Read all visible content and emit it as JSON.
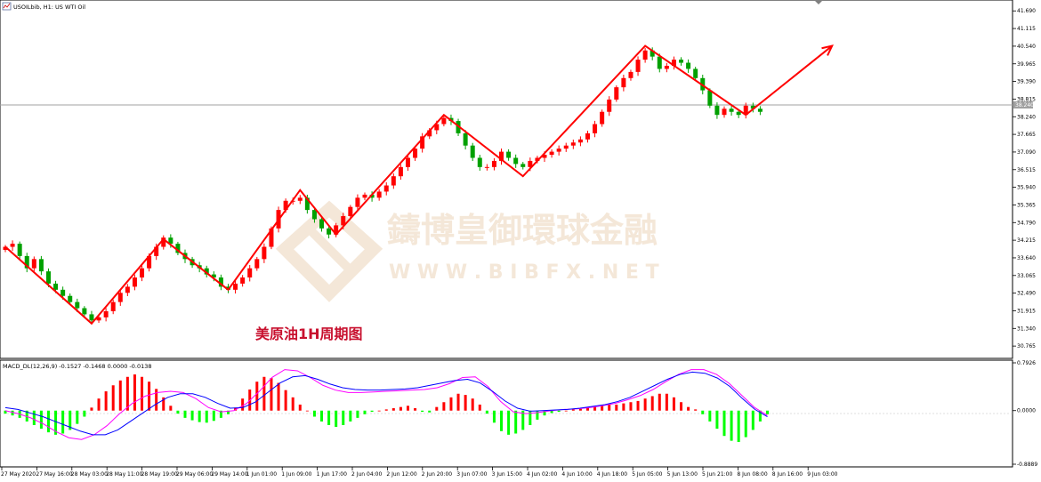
{
  "colors": {
    "bull": "#ff0000",
    "bear": "#00a000",
    "zigzag": "#ff0000",
    "macd_pos": "#ff0000",
    "macd_neg": "#00ff00",
    "macd_line": "#ff00ff",
    "signal_line": "#0000ff",
    "price_box": "#a0a0a0",
    "watermark": "#f4e7d8"
  },
  "header": {
    "icon": "chart-window-icon",
    "symbol_label": "USOILbib, H1:  US WTI Oil"
  },
  "annotation": {
    "text": "美原油1H周期图"
  },
  "watermark": {
    "cn": "鑄博皇御環球金融",
    "url": "W W W . B I B F X . N E T",
    "logo_icon": "diamond-logo-icon"
  },
  "current_price_label": "38.240",
  "chart_data": [
    {
      "type": "candlestick",
      "title": "USOILbib, H1: US WTI Oil",
      "y_ticks": [
        "41.690",
        "41.115",
        "40.540",
        "39.965",
        "39.390",
        "38.815",
        "38.240",
        "37.665",
        "37.090",
        "36.515",
        "35.940",
        "35.365",
        "34.790",
        "34.215",
        "33.640",
        "33.065",
        "32.490",
        "31.915",
        "31.340",
        "30.765"
      ],
      "x_ticks": [
        "27 May 2020",
        "27 May 16:00",
        "28 May 03:00",
        "28 May 11:00",
        "28 May 19:00",
        "29 May 06:00",
        "29 May 14:00",
        "1 Jun 01:00",
        "1 Jun 09:00",
        "1 Jun 17:00",
        "2 Jun 04:00",
        "2 Jun 12:00",
        "2 Jun 20:00",
        "3 Jun 07:00",
        "3 Jun 15:00",
        "4 Jun 02:00",
        "4 Jun 10:00",
        "4 Jun 18:00",
        "5 Jun 05:00",
        "5 Jun 13:00",
        "5 Jun 21:00",
        "8 Jun 08:00",
        "8 Jun 16:00",
        "9 Jun 03:00"
      ],
      "ylim": [
        30.45,
        41.9
      ],
      "current_price": 38.24,
      "closes": [
        34.0,
        34.1,
        33.7,
        33.3,
        33.6,
        33.2,
        32.8,
        32.6,
        32.4,
        32.2,
        32.0,
        31.8,
        31.6,
        31.7,
        31.9,
        32.2,
        32.5,
        32.7,
        33.0,
        33.3,
        33.7,
        34.0,
        34.3,
        34.1,
        33.8,
        33.6,
        33.4,
        33.3,
        33.1,
        33.0,
        32.7,
        32.6,
        32.8,
        33.0,
        33.3,
        33.6,
        34.0,
        34.6,
        35.2,
        35.5,
        35.5,
        35.6,
        35.2,
        34.9,
        34.6,
        34.4,
        34.7,
        35.0,
        35.3,
        35.6,
        35.7,
        35.6,
        35.8,
        36.0,
        36.3,
        36.6,
        36.9,
        37.2,
        37.6,
        37.8,
        38.0,
        38.2,
        38.1,
        37.7,
        37.3,
        36.9,
        36.6,
        36.6,
        36.8,
        37.1,
        36.9,
        36.7,
        36.6,
        36.8,
        36.9,
        37.0,
        37.1,
        37.2,
        37.3,
        37.4,
        37.5,
        37.7,
        38.0,
        38.4,
        38.8,
        39.2,
        39.5,
        39.7,
        40.1,
        40.4,
        40.2,
        39.8,
        39.9,
        40.1,
        40.0,
        39.8,
        39.5,
        39.1,
        38.6,
        38.3,
        38.5,
        38.4,
        38.3,
        38.6,
        38.5,
        38.4
      ],
      "zigzag": [
        {
          "i": 0,
          "p": 34.0
        },
        {
          "i": 12,
          "p": 31.5
        },
        {
          "i": 22,
          "p": 34.25
        },
        {
          "i": 31,
          "p": 32.6
        },
        {
          "i": 41,
          "p": 35.85
        },
        {
          "i": 46,
          "p": 34.4
        },
        {
          "i": 61,
          "p": 38.3
        },
        {
          "i": 72,
          "p": 36.3
        },
        {
          "i": 89,
          "p": 40.55
        },
        {
          "i": 103,
          "p": 38.3
        },
        {
          "i": 115,
          "p": 40.55
        }
      ],
      "xlabel": "",
      "ylabel": ""
    },
    {
      "type": "bar",
      "title": "MACD_DL(12,26,9) -0.1527 -0.1468 0.0000 -0.0138",
      "y_ticks": [
        "0.7926",
        "0.0000",
        "-0.8889"
      ],
      "ylim": [
        -0.8889,
        0.7926
      ],
      "histogram": [
        -0.05,
        -0.08,
        -0.12,
        -0.18,
        -0.24,
        -0.3,
        -0.36,
        -0.4,
        -0.38,
        -0.32,
        -0.22,
        -0.1,
        0.05,
        0.2,
        0.32,
        0.42,
        0.5,
        0.56,
        0.6,
        0.56,
        0.48,
        0.36,
        0.22,
        0.08,
        -0.05,
        -0.12,
        -0.16,
        -0.19,
        -0.2,
        -0.17,
        -0.12,
        -0.06,
        0.05,
        0.2,
        0.35,
        0.48,
        0.56,
        0.54,
        0.46,
        0.34,
        0.22,
        0.1,
        0.0,
        -0.1,
        -0.18,
        -0.24,
        -0.27,
        -0.24,
        -0.18,
        -0.12,
        -0.06,
        -0.02,
        0.0,
        0.02,
        0.04,
        0.06,
        0.08,
        0.04,
        -0.02,
        -0.03,
        0.06,
        0.14,
        0.22,
        0.28,
        0.26,
        0.2,
        0.1,
        -0.05,
        -0.2,
        -0.34,
        -0.4,
        -0.38,
        -0.32,
        -0.24,
        -0.15,
        -0.08,
        -0.04,
        -0.02,
        0.0,
        0.02,
        0.03,
        0.05,
        0.06,
        0.08,
        0.1,
        0.1,
        0.12,
        0.14,
        0.16,
        0.2,
        0.24,
        0.28,
        0.28,
        0.22,
        0.14,
        0.06,
        0.02,
        -0.06,
        -0.18,
        -0.3,
        -0.42,
        -0.5,
        -0.52,
        -0.44,
        -0.32,
        -0.18,
        -0.06
      ],
      "macd_line": [
        0.0,
        -0.05,
        -0.12,
        -0.22,
        -0.35,
        -0.45,
        -0.48,
        -0.4,
        -0.25,
        -0.05,
        0.12,
        0.24,
        0.3,
        0.32,
        0.3,
        0.2,
        0.05,
        -0.02,
        0.0,
        0.12,
        0.32,
        0.55,
        0.68,
        0.66,
        0.55,
        0.42,
        0.34,
        0.3,
        0.3,
        0.31,
        0.32,
        0.33,
        0.34,
        0.35,
        0.38,
        0.45,
        0.55,
        0.56,
        0.4,
        0.15,
        -0.02,
        -0.05,
        -0.03,
        0.0,
        0.02,
        0.03,
        0.05,
        0.08,
        0.12,
        0.18,
        0.25,
        0.35,
        0.48,
        0.6,
        0.68,
        0.68,
        0.6,
        0.45,
        0.25,
        0.05,
        -0.08
      ],
      "signal_line": [
        0.05,
        0.02,
        -0.04,
        -0.1,
        -0.18,
        -0.26,
        -0.34,
        -0.4,
        -0.4,
        -0.32,
        -0.18,
        -0.04,
        0.1,
        0.22,
        0.28,
        0.28,
        0.22,
        0.12,
        0.04,
        0.05,
        0.14,
        0.3,
        0.46,
        0.56,
        0.58,
        0.52,
        0.44,
        0.38,
        0.35,
        0.34,
        0.34,
        0.35,
        0.36,
        0.38,
        0.42,
        0.46,
        0.5,
        0.52,
        0.46,
        0.32,
        0.16,
        0.04,
        -0.01,
        0.0,
        0.01,
        0.02,
        0.04,
        0.07,
        0.1,
        0.15,
        0.22,
        0.32,
        0.42,
        0.52,
        0.6,
        0.64,
        0.62,
        0.54,
        0.4,
        0.2,
        0.02,
        -0.1
      ]
    }
  ]
}
